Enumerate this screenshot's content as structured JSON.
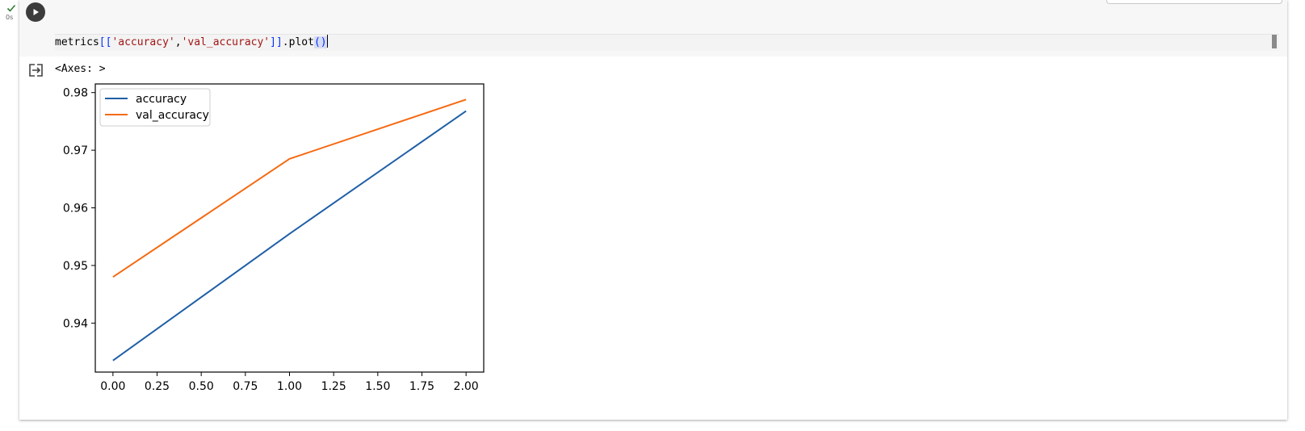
{
  "cell": {
    "exec_time": "0s",
    "code": {
      "object": "metrics",
      "open": "[[",
      "col1": "'accuracy'",
      "comma": ",",
      "col2": "'val_accuracy'",
      "close": "]]",
      "method": ".plot",
      "parens": "()"
    }
  },
  "output": {
    "text": "<Axes: >"
  },
  "colors": {
    "accuracy": "#1f5fa6",
    "val_accuracy": "#f56a12"
  },
  "chart_data": {
    "type": "line",
    "title": "",
    "xlabel": "",
    "ylabel": "",
    "x": [
      0,
      1,
      2
    ],
    "xlim": [
      -0.1,
      2.1
    ],
    "ylim": [
      0.9315,
      0.9815
    ],
    "xticks": [
      0,
      0.25,
      0.5,
      0.75,
      1,
      1.25,
      1.5,
      1.75,
      2
    ],
    "xtick_labels": [
      "0.00",
      "0.25",
      "0.50",
      "0.75",
      "1.00",
      "1.25",
      "1.50",
      "1.75",
      "2.00"
    ],
    "yticks": [
      0.94,
      0.95,
      0.96,
      0.97,
      0.98
    ],
    "ytick_labels": [
      "0.94",
      "0.95",
      "0.96",
      "0.97",
      "0.98"
    ],
    "legend_placement": "upper-left",
    "grid": false,
    "series": [
      {
        "name": "accuracy",
        "values": [
          0.9335,
          0.9555,
          0.9768
        ]
      },
      {
        "name": "val_accuracy",
        "values": [
          0.948,
          0.9685,
          0.9788
        ]
      }
    ]
  }
}
